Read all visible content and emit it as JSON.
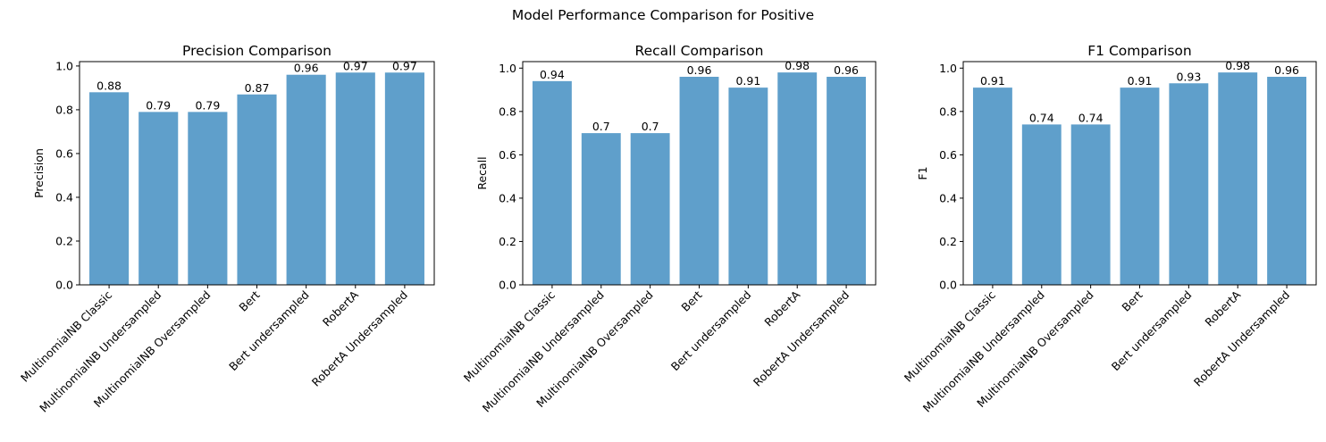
{
  "figure": {
    "suptitle": "Model Performance Comparison for Positive"
  },
  "colors": {
    "bar": "#5f9fcb"
  },
  "chart_data": [
    {
      "type": "bar",
      "title": "Precision Comparison",
      "xlabel": "",
      "ylabel": "Precision",
      "ylim": [
        0,
        1.02
      ],
      "yticks": [
        "0.0",
        "0.2",
        "0.4",
        "0.6",
        "0.8",
        "1.0"
      ],
      "grid": false,
      "categories": [
        "MultinomialNB Classic",
        "MultinomialNB Undersampled",
        "MultinomialNB Oversampled",
        "Bert",
        "Bert undersampled",
        "RobertA",
        "RobertA Undersampled"
      ],
      "values": [
        0.88,
        0.79,
        0.79,
        0.87,
        0.96,
        0.97,
        0.97
      ],
      "labels": [
        "0.88",
        "0.79",
        "0.79",
        "0.87",
        "0.96",
        "0.97",
        "0.97"
      ]
    },
    {
      "type": "bar",
      "title": "Recall Comparison",
      "xlabel": "",
      "ylabel": "Recall",
      "ylim": [
        0,
        1.03
      ],
      "yticks": [
        "0.0",
        "0.2",
        "0.4",
        "0.6",
        "0.8",
        "1.0"
      ],
      "grid": false,
      "categories": [
        "MultinomialNB Classic",
        "MultinomialNB Undersampled",
        "MultinomialNB Oversampled",
        "Bert",
        "Bert undersampled",
        "RobertA",
        "RobertA Undersampled"
      ],
      "values": [
        0.94,
        0.7,
        0.7,
        0.96,
        0.91,
        0.98,
        0.96
      ],
      "labels": [
        "0.94",
        "0.7",
        "0.7",
        "0.96",
        "0.91",
        "0.98",
        "0.96"
      ]
    },
    {
      "type": "bar",
      "title": "F1 Comparison",
      "xlabel": "",
      "ylabel": "F1",
      "ylim": [
        0,
        1.03
      ],
      "yticks": [
        "0.0",
        "0.2",
        "0.4",
        "0.6",
        "0.8",
        "1.0"
      ],
      "grid": false,
      "categories": [
        "MultinomialNB Classic",
        "MultinomialNB Undersampled",
        "MultinomialNB Oversampled",
        "Bert",
        "Bert undersampled",
        "RobertA",
        "RobertA Undersampled"
      ],
      "values": [
        0.91,
        0.74,
        0.74,
        0.91,
        0.93,
        0.98,
        0.96
      ],
      "labels": [
        "0.91",
        "0.74",
        "0.74",
        "0.91",
        "0.93",
        "0.98",
        "0.96"
      ]
    }
  ]
}
